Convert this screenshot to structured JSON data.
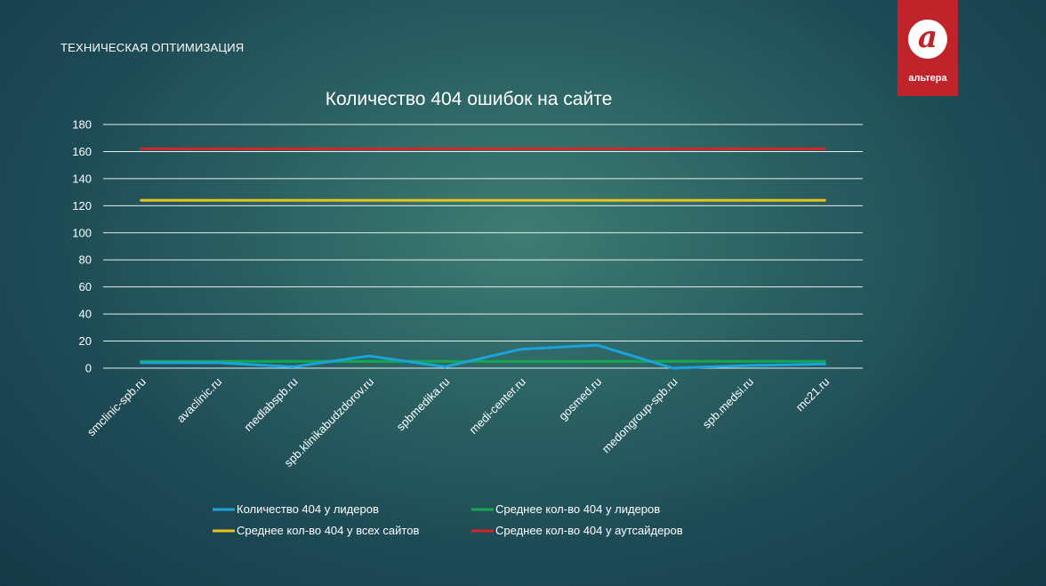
{
  "header": {
    "section_title": "ТЕХНИЧЕСКАЯ ОПТИМИЗАЦИЯ"
  },
  "logo": {
    "glyph": "а",
    "text": "альтера",
    "bg_color": "#c0242a"
  },
  "chart_data": {
    "type": "line",
    "title": "Количество 404 ошибок на сайте",
    "categories": [
      "smclinic-spb.ru",
      "avaclinic.ru",
      "medlabspb.ru",
      "spb.klinikabudzdorov.ru",
      "spbmedika.ru",
      "medi-center.ru",
      "gosmed.ru",
      "medongroup-spb.ru",
      "spb.medsi.ru",
      "mc21.ru"
    ],
    "ylim": [
      0,
      180
    ],
    "yticks": [
      0,
      20,
      40,
      60,
      80,
      100,
      120,
      140,
      160,
      180
    ],
    "grid": true,
    "legend_position": "bottom",
    "series": [
      {
        "name": "Количество 404 у лидеров",
        "color": "#1aa3dc",
        "values": [
          4,
          4,
          1,
          9,
          1,
          14,
          17,
          0,
          2,
          3
        ]
      },
      {
        "name": "Среднее кол-во 404 у лидеров",
        "color": "#14a84e",
        "values": [
          5,
          5,
          5,
          5,
          5,
          5,
          5,
          5,
          5,
          5
        ]
      },
      {
        "name": "Среднее кол-во 404 у всех сайтов",
        "color": "#e8c21a",
        "values": [
          124,
          124,
          124,
          124,
          124,
          124,
          124,
          124,
          124,
          124
        ]
      },
      {
        "name": "Среднее кол-во 404 у аутсайдеров",
        "color": "#d4262a",
        "values": [
          162,
          162,
          162,
          162,
          162,
          162,
          162,
          162,
          162,
          162
        ]
      }
    ]
  }
}
